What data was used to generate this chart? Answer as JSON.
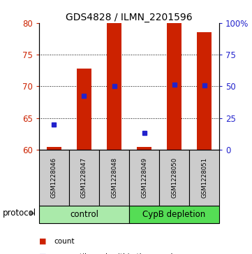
{
  "title": "GDS4828 / ILMN_2201596",
  "samples": [
    "GSM1228046",
    "GSM1228047",
    "GSM1228048",
    "GSM1228049",
    "GSM1228050",
    "GSM1228051"
  ],
  "bar_bottoms": [
    60,
    60,
    60,
    60,
    60,
    60
  ],
  "bar_tops": [
    60.5,
    72.8,
    80.0,
    60.5,
    80.0,
    78.5
  ],
  "percentile_values": [
    64.0,
    68.5,
    70.0,
    62.7,
    70.3,
    70.2
  ],
  "ylim": [
    60,
    80
  ],
  "yticks_left": [
    60,
    65,
    70,
    75,
    80
  ],
  "yticks_right": [
    0,
    25,
    50,
    75,
    100
  ],
  "ytick_labels_right": [
    "0",
    "25",
    "50",
    "75",
    "100%"
  ],
  "bar_color": "#cc2200",
  "percentile_color": "#2222cc",
  "protocol_groups": [
    {
      "label": "control",
      "start": 0,
      "end": 3,
      "color": "#aaeaaa"
    },
    {
      "label": "CypB depletion",
      "start": 3,
      "end": 6,
      "color": "#55dd55"
    }
  ],
  "background_color": "#ffffff",
  "sample_box_color": "#cccccc"
}
